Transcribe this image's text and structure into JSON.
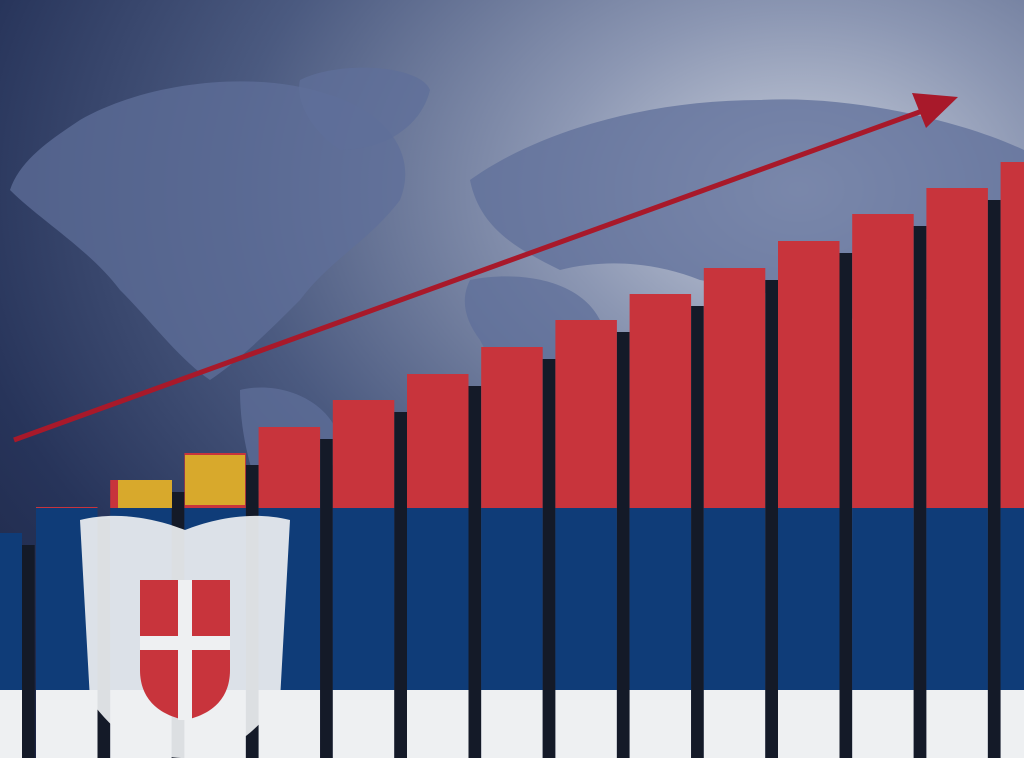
{
  "scene": {
    "subject": "serbia-economy-growth-bar-illustration",
    "colors": {
      "flag_red": "#c8343c",
      "flag_blue": "#0f3c78",
      "flag_white": "#eef0f2",
      "arrow": "#a8192a",
      "background": "#27345a",
      "bar_gap": "#141a28"
    },
    "trend": "up"
  }
}
